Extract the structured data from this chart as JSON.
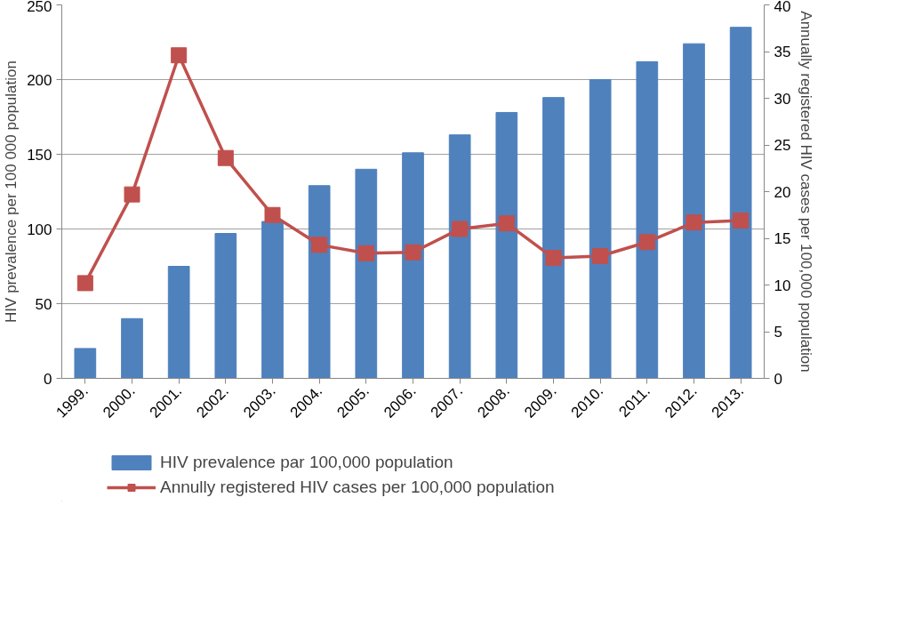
{
  "chart_data": {
    "type": "bar",
    "ylabel": "HIV prevalence per 100 000 population",
    "y2label": "Annually registered HIV cases per 100,000 population",
    "categories": [
      "1999.",
      "2000.",
      "2001.",
      "2002.",
      "2003.",
      "2004.",
      "2005.",
      "2006.",
      "2007.",
      "2008.",
      "2009.",
      "2010.",
      "2011.",
      "2012.",
      "2013."
    ],
    "series": [
      {
        "name": "HIV prevalence par 100,000 population",
        "color": "#4f81bd",
        "values": [
          20,
          40,
          75,
          97,
          105,
          129,
          140,
          151,
          163,
          178,
          188,
          200,
          212,
          224,
          235
        ]
      },
      {
        "name": "Annully registered HIV cases per 100,000 population",
        "color": "#c0504d",
        "type": "line",
        "axis": "y2",
        "marker": "square",
        "values": [
          10.2,
          19.7,
          34.6,
          23.6,
          17.5,
          14.3,
          13.4,
          13.5,
          16.0,
          16.6,
          12.9,
          13.1,
          14.6,
          16.7,
          16.9
        ]
      }
    ],
    "ylim": [
      0,
      250
    ],
    "yticks": [
      0,
      50,
      100,
      150,
      200,
      250
    ],
    "y2lim": [
      0,
      40
    ],
    "y2ticks": [
      0,
      5,
      10,
      15,
      20,
      25,
      30,
      35,
      40
    ],
    "grid": "y",
    "legend": "bottom"
  }
}
